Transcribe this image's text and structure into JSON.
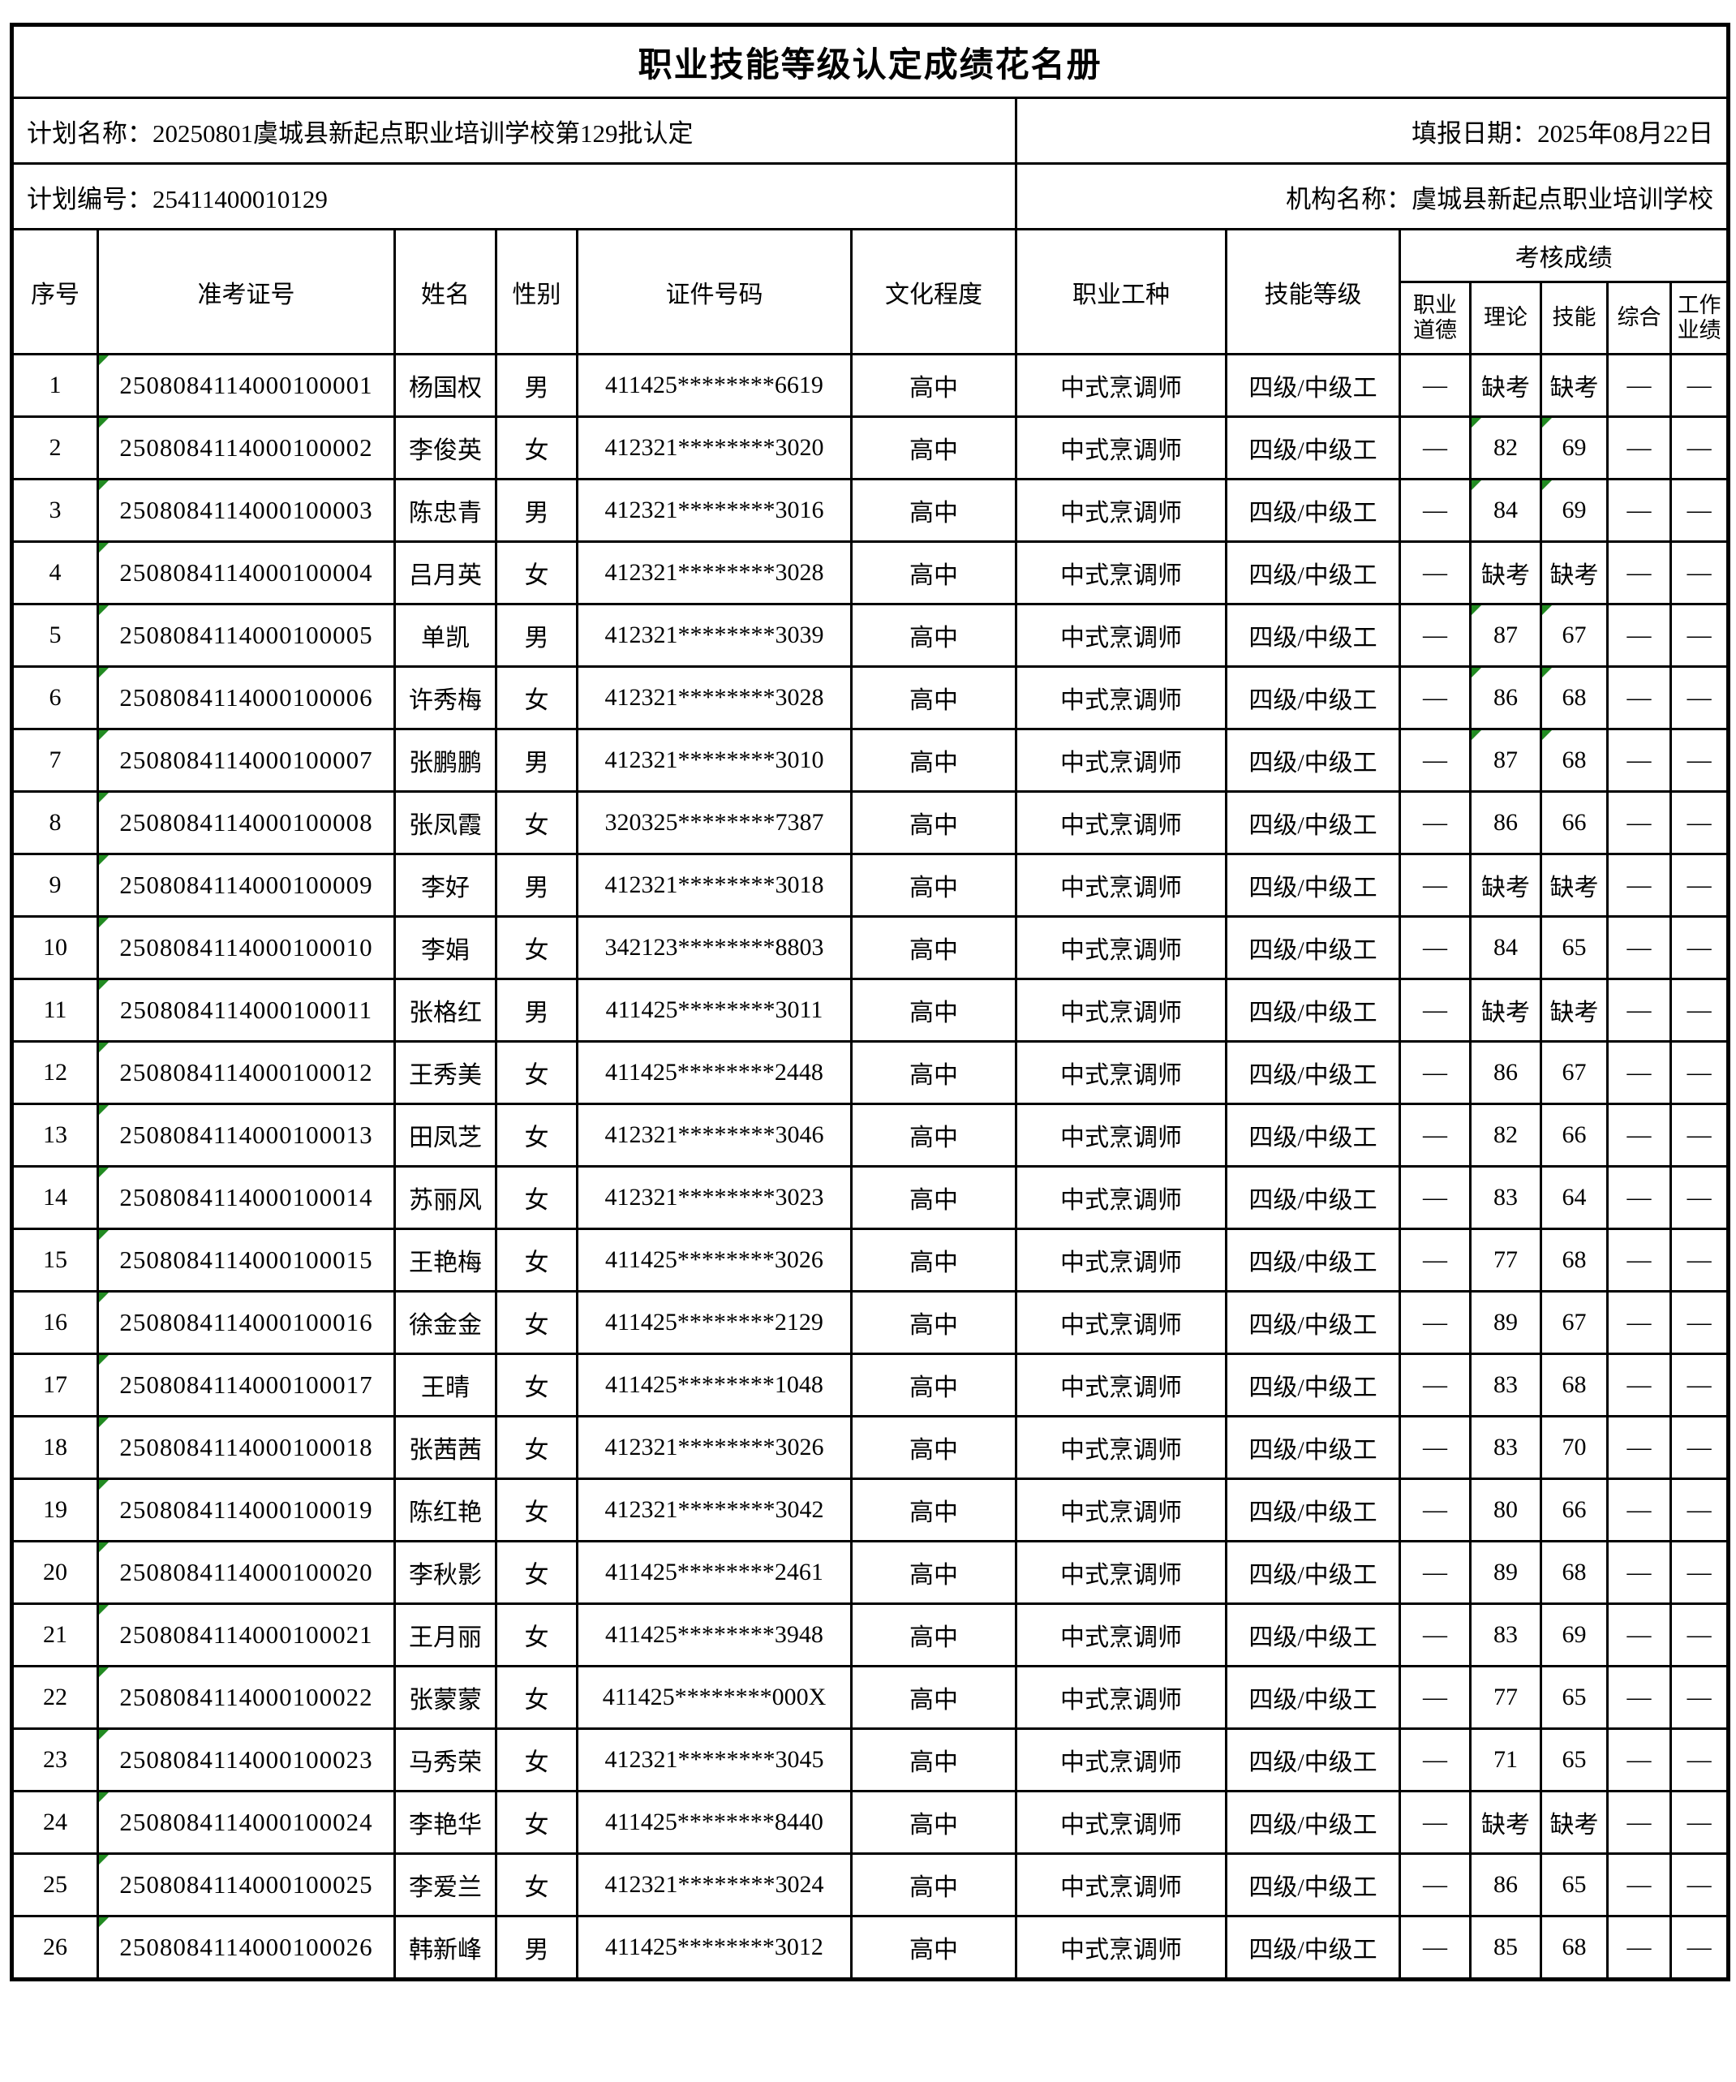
{
  "title": "职业技能等级认定成绩花名册",
  "info": {
    "plan_name": "计划名称：20250801虞城县新起点职业培训学校第129批认定",
    "report_date": "填报日期：2025年08月22日",
    "plan_code": "计划编号：25411400010129",
    "org_name": "机构名称：虞城县新起点职业培训学校"
  },
  "colors": {
    "grid_line": "#000000",
    "marker_green": "#228B22",
    "background": "#ffffff"
  },
  "table": {
    "headers": {
      "seq": "序号",
      "ticket": "准考证号",
      "name": "姓名",
      "gender": "性别",
      "id_number": "证件号码",
      "education": "文化程度",
      "occupation": "职业工种",
      "level": "技能等级",
      "assessment": "考核成绩",
      "sub": [
        "职业\n道德",
        "理论",
        "技能",
        "综合",
        "工作\n业绩"
      ]
    },
    "rows": [
      {
        "no": "1",
        "ticket": "2508084114000100001",
        "name": "杨国权",
        "gender": "男",
        "id_number": "411425********6619",
        "education": "高中",
        "occupation": "中式烹调师",
        "level": "四级/中级工",
        "morality": "—",
        "theory": "缺考",
        "skill": "缺考",
        "comprehensive": "—",
        "performance": "—",
        "ticket_corner": true,
        "theory_corner": false,
        "skill_corner": false
      },
      {
        "no": "2",
        "ticket": "2508084114000100002",
        "name": "李俊英",
        "gender": "女",
        "id_number": "412321********3020",
        "education": "高中",
        "occupation": "中式烹调师",
        "level": "四级/中级工",
        "morality": "—",
        "theory": "82",
        "skill": "69",
        "comprehensive": "—",
        "performance": "—",
        "ticket_corner": true,
        "theory_corner": true,
        "skill_corner": true
      },
      {
        "no": "3",
        "ticket": "2508084114000100003",
        "name": "陈忠青",
        "gender": "男",
        "id_number": "412321********3016",
        "education": "高中",
        "occupation": "中式烹调师",
        "level": "四级/中级工",
        "morality": "—",
        "theory": "84",
        "skill": "69",
        "comprehensive": "—",
        "performance": "—",
        "ticket_corner": true,
        "theory_corner": true,
        "skill_corner": true
      },
      {
        "no": "4",
        "ticket": "2508084114000100004",
        "name": "吕月英",
        "gender": "女",
        "id_number": "412321********3028",
        "education": "高中",
        "occupation": "中式烹调师",
        "level": "四级/中级工",
        "morality": "—",
        "theory": "缺考",
        "skill": "缺考",
        "comprehensive": "—",
        "performance": "—",
        "ticket_corner": true,
        "theory_corner": false,
        "skill_corner": false
      },
      {
        "no": "5",
        "ticket": "2508084114000100005",
        "name": "单凯",
        "gender": "男",
        "id_number": "412321********3039",
        "education": "高中",
        "occupation": "中式烹调师",
        "level": "四级/中级工",
        "morality": "—",
        "theory": "87",
        "skill": "67",
        "comprehensive": "—",
        "performance": "—",
        "ticket_corner": true,
        "theory_corner": true,
        "skill_corner": true
      },
      {
        "no": "6",
        "ticket": "2508084114000100006",
        "name": "许秀梅",
        "gender": "女",
        "id_number": "412321********3028",
        "education": "高中",
        "occupation": "中式烹调师",
        "level": "四级/中级工",
        "morality": "—",
        "theory": "86",
        "skill": "68",
        "comprehensive": "—",
        "performance": "—",
        "ticket_corner": true,
        "theory_corner": true,
        "skill_corner": true
      },
      {
        "no": "7",
        "ticket": "2508084114000100007",
        "name": "张鹏鹏",
        "gender": "男",
        "id_number": "412321********3010",
        "education": "高中",
        "occupation": "中式烹调师",
        "level": "四级/中级工",
        "morality": "—",
        "theory": "87",
        "skill": "68",
        "comprehensive": "—",
        "performance": "—",
        "ticket_corner": true,
        "theory_corner": true,
        "skill_corner": true
      },
      {
        "no": "8",
        "ticket": "2508084114000100008",
        "name": "张凤霞",
        "gender": "女",
        "id_number": "320325********7387",
        "education": "高中",
        "occupation": "中式烹调师",
        "level": "四级/中级工",
        "morality": "—",
        "theory": "86",
        "skill": "66",
        "comprehensive": "—",
        "performance": "—",
        "ticket_corner": true,
        "theory_corner": false,
        "skill_corner": false
      },
      {
        "no": "9",
        "ticket": "2508084114000100009",
        "name": "李好",
        "gender": "男",
        "id_number": "412321********3018",
        "education": "高中",
        "occupation": "中式烹调师",
        "level": "四级/中级工",
        "morality": "—",
        "theory": "缺考",
        "skill": "缺考",
        "comprehensive": "—",
        "performance": "—",
        "ticket_corner": true,
        "theory_corner": false,
        "skill_corner": false
      },
      {
        "no": "10",
        "ticket": "2508084114000100010",
        "name": "李娟",
        "gender": "女",
        "id_number": "342123********8803",
        "education": "高中",
        "occupation": "中式烹调师",
        "level": "四级/中级工",
        "morality": "—",
        "theory": "84",
        "skill": "65",
        "comprehensive": "—",
        "performance": "—",
        "ticket_corner": true,
        "theory_corner": false,
        "skill_corner": false
      },
      {
        "no": "11",
        "ticket": "2508084114000100011",
        "name": "张格红",
        "gender": "男",
        "id_number": "411425********3011",
        "education": "高中",
        "occupation": "中式烹调师",
        "level": "四级/中级工",
        "morality": "—",
        "theory": "缺考",
        "skill": "缺考",
        "comprehensive": "—",
        "performance": "—",
        "ticket_corner": true,
        "theory_corner": false,
        "skill_corner": false
      },
      {
        "no": "12",
        "ticket": "2508084114000100012",
        "name": "王秀美",
        "gender": "女",
        "id_number": "411425********2448",
        "education": "高中",
        "occupation": "中式烹调师",
        "level": "四级/中级工",
        "morality": "—",
        "theory": "86",
        "skill": "67",
        "comprehensive": "—",
        "performance": "—",
        "ticket_corner": true,
        "theory_corner": false,
        "skill_corner": false
      },
      {
        "no": "13",
        "ticket": "2508084114000100013",
        "name": "田凤芝",
        "gender": "女",
        "id_number": "412321********3046",
        "education": "高中",
        "occupation": "中式烹调师",
        "level": "四级/中级工",
        "morality": "—",
        "theory": "82",
        "skill": "66",
        "comprehensive": "—",
        "performance": "—",
        "ticket_corner": true,
        "theory_corner": false,
        "skill_corner": false
      },
      {
        "no": "14",
        "ticket": "2508084114000100014",
        "name": "苏丽风",
        "gender": "女",
        "id_number": "412321********3023",
        "education": "高中",
        "occupation": "中式烹调师",
        "level": "四级/中级工",
        "morality": "—",
        "theory": "83",
        "skill": "64",
        "comprehensive": "—",
        "performance": "—",
        "ticket_corner": true,
        "theory_corner": false,
        "skill_corner": false
      },
      {
        "no": "15",
        "ticket": "2508084114000100015",
        "name": "王艳梅",
        "gender": "女",
        "id_number": "411425********3026",
        "education": "高中",
        "occupation": "中式烹调师",
        "level": "四级/中级工",
        "morality": "—",
        "theory": "77",
        "skill": "68",
        "comprehensive": "—",
        "performance": "—",
        "ticket_corner": true,
        "theory_corner": false,
        "skill_corner": false
      },
      {
        "no": "16",
        "ticket": "2508084114000100016",
        "name": "徐金金",
        "gender": "女",
        "id_number": "411425********2129",
        "education": "高中",
        "occupation": "中式烹调师",
        "level": "四级/中级工",
        "morality": "—",
        "theory": "89",
        "skill": "67",
        "comprehensive": "—",
        "performance": "—",
        "ticket_corner": true,
        "theory_corner": false,
        "skill_corner": false
      },
      {
        "no": "17",
        "ticket": "2508084114000100017",
        "name": "王晴",
        "gender": "女",
        "id_number": "411425********1048",
        "education": "高中",
        "occupation": "中式烹调师",
        "level": "四级/中级工",
        "morality": "—",
        "theory": "83",
        "skill": "68",
        "comprehensive": "—",
        "performance": "—",
        "ticket_corner": true,
        "theory_corner": false,
        "skill_corner": false
      },
      {
        "no": "18",
        "ticket": "2508084114000100018",
        "name": "张茜茜",
        "gender": "女",
        "id_number": "412321********3026",
        "education": "高中",
        "occupation": "中式烹调师",
        "level": "四级/中级工",
        "morality": "—",
        "theory": "83",
        "skill": "70",
        "comprehensive": "—",
        "performance": "—",
        "ticket_corner": true,
        "theory_corner": false,
        "skill_corner": false
      },
      {
        "no": "19",
        "ticket": "2508084114000100019",
        "name": "陈红艳",
        "gender": "女",
        "id_number": "412321********3042",
        "education": "高中",
        "occupation": "中式烹调师",
        "level": "四级/中级工",
        "morality": "—",
        "theory": "80",
        "skill": "66",
        "comprehensive": "—",
        "performance": "—",
        "ticket_corner": true,
        "theory_corner": false,
        "skill_corner": false
      },
      {
        "no": "20",
        "ticket": "2508084114000100020",
        "name": "李秋影",
        "gender": "女",
        "id_number": "411425********2461",
        "education": "高中",
        "occupation": "中式烹调师",
        "level": "四级/中级工",
        "morality": "—",
        "theory": "89",
        "skill": "68",
        "comprehensive": "—",
        "performance": "—",
        "ticket_corner": true,
        "theory_corner": false,
        "skill_corner": false
      },
      {
        "no": "21",
        "ticket": "2508084114000100021",
        "name": "王月丽",
        "gender": "女",
        "id_number": "411425********3948",
        "education": "高中",
        "occupation": "中式烹调师",
        "level": "四级/中级工",
        "morality": "—",
        "theory": "83",
        "skill": "69",
        "comprehensive": "—",
        "performance": "—",
        "ticket_corner": true,
        "theory_corner": false,
        "skill_corner": false
      },
      {
        "no": "22",
        "ticket": "2508084114000100022",
        "name": "张蒙蒙",
        "gender": "女",
        "id_number": "411425********000X",
        "education": "高中",
        "occupation": "中式烹调师",
        "level": "四级/中级工",
        "morality": "—",
        "theory": "77",
        "skill": "65",
        "comprehensive": "—",
        "performance": "—",
        "ticket_corner": true,
        "theory_corner": false,
        "skill_corner": false
      },
      {
        "no": "23",
        "ticket": "2508084114000100023",
        "name": "马秀荣",
        "gender": "女",
        "id_number": "412321********3045",
        "education": "高中",
        "occupation": "中式烹调师",
        "level": "四级/中级工",
        "morality": "—",
        "theory": "71",
        "skill": "65",
        "comprehensive": "—",
        "performance": "—",
        "ticket_corner": true,
        "theory_corner": false,
        "skill_corner": false
      },
      {
        "no": "24",
        "ticket": "2508084114000100024",
        "name": "李艳华",
        "gender": "女",
        "id_number": "411425********8440",
        "education": "高中",
        "occupation": "中式烹调师",
        "level": "四级/中级工",
        "morality": "—",
        "theory": "缺考",
        "skill": "缺考",
        "comprehensive": "—",
        "performance": "—",
        "ticket_corner": true,
        "theory_corner": false,
        "skill_corner": false
      },
      {
        "no": "25",
        "ticket": "2508084114000100025",
        "name": "李爱兰",
        "gender": "女",
        "id_number": "412321********3024",
        "education": "高中",
        "occupation": "中式烹调师",
        "level": "四级/中级工",
        "morality": "—",
        "theory": "86",
        "skill": "65",
        "comprehensive": "—",
        "performance": "—",
        "ticket_corner": true,
        "theory_corner": false,
        "skill_corner": false
      },
      {
        "no": "26",
        "ticket": "2508084114000100026",
        "name": "韩新峰",
        "gender": "男",
        "id_number": "411425********3012",
        "education": "高中",
        "occupation": "中式烹调师",
        "level": "四级/中级工",
        "morality": "—",
        "theory": "85",
        "skill": "68",
        "comprehensive": "—",
        "performance": "—",
        "ticket_corner": true,
        "theory_corner": false,
        "skill_corner": false
      }
    ]
  }
}
